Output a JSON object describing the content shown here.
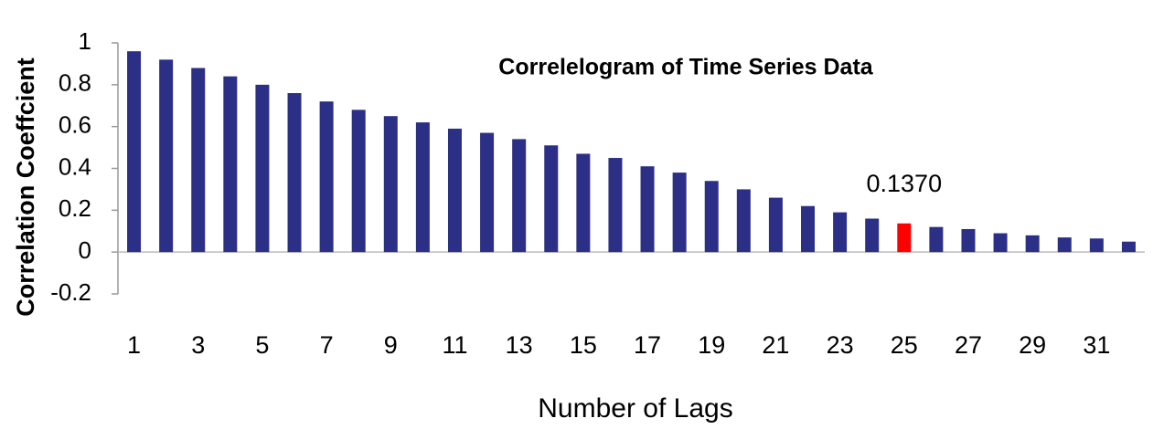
{
  "chart_data": {
    "type": "bar",
    "title": "Correlelogram  of Time Series Data",
    "x_label": "Number of Lags",
    "y_label": "Correlation  Coeffcient",
    "categories": [
      "1",
      null,
      "3",
      null,
      "5",
      null,
      "7",
      null,
      "9",
      null,
      "11",
      null,
      "13",
      null,
      "15",
      null,
      "17",
      null,
      "19",
      null,
      "21",
      null,
      "23",
      null,
      "25",
      null,
      "27",
      null,
      "29",
      null,
      "31",
      null
    ],
    "values": [
      0.96,
      0.92,
      0.88,
      0.84,
      0.8,
      0.76,
      0.72,
      0.68,
      0.65,
      0.62,
      0.59,
      0.57,
      0.54,
      0.51,
      0.47,
      0.45,
      0.41,
      0.38,
      0.34,
      0.3,
      0.26,
      0.22,
      0.19,
      0.16,
      0.137,
      0.12,
      0.11,
      0.09,
      0.08,
      0.07,
      0.065,
      0.05
    ],
    "value_labels": [
      null,
      null,
      null,
      null,
      null,
      null,
      null,
      null,
      null,
      null,
      null,
      null,
      null,
      null,
      null,
      null,
      null,
      null,
      null,
      null,
      null,
      null,
      null,
      null,
      "0.1370",
      null,
      null,
      null,
      null,
      null,
      null,
      null
    ],
    "colors": [
      "#2b2f86",
      "#2b2f86",
      "#2b2f86",
      "#2b2f86",
      "#2b2f86",
      "#2b2f86",
      "#2b2f86",
      "#2b2f86",
      "#2b2f86",
      "#2b2f86",
      "#2b2f86",
      "#2b2f86",
      "#2b2f86",
      "#2b2f86",
      "#2b2f86",
      "#2b2f86",
      "#2b2f86",
      "#2b2f86",
      "#2b2f86",
      "#2b2f86",
      "#2b2f86",
      "#2b2f86",
      "#2b2f86",
      "#2b2f86",
      "#ff0000",
      "#2b2f86",
      "#2b2f86",
      "#2b2f86",
      "#2b2f86",
      "#2b2f86",
      "#2b2f86",
      "#2b2f86"
    ],
    "ylim": [
      -0.2,
      1
    ],
    "yticks": [
      -0.2,
      0,
      0.2,
      0.4,
      0.6,
      0.8,
      1
    ],
    "grid": false
  }
}
